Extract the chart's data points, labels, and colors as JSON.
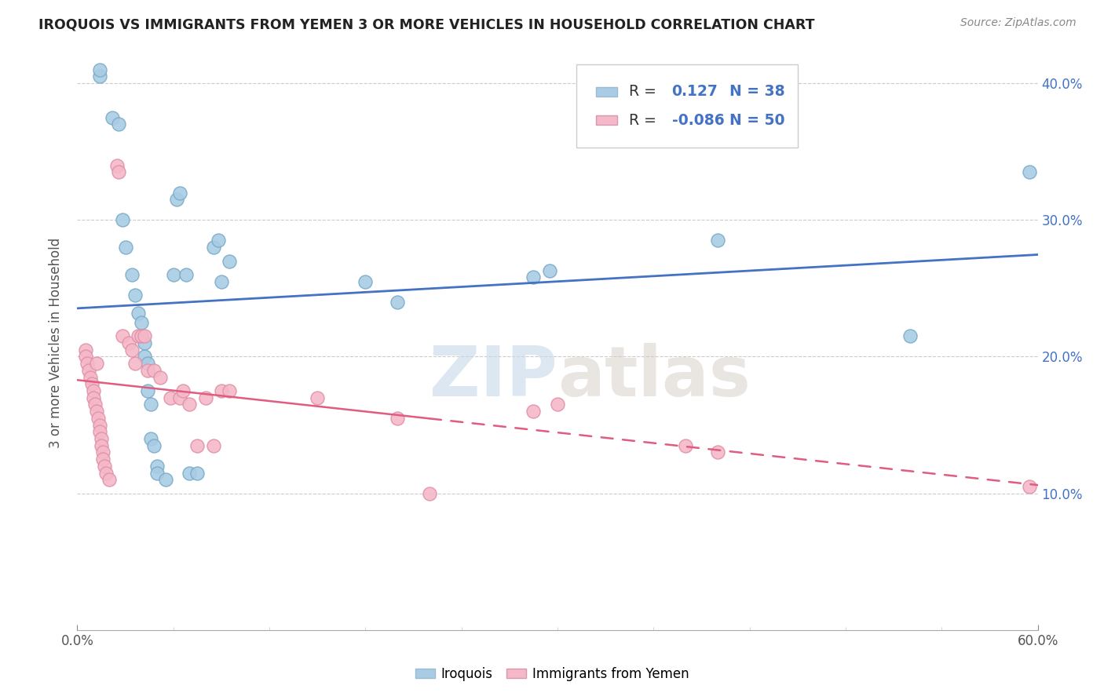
{
  "title": "IROQUOIS VS IMMIGRANTS FROM YEMEN 3 OR MORE VEHICLES IN HOUSEHOLD CORRELATION CHART",
  "source": "Source: ZipAtlas.com",
  "ylabel": "3 or more Vehicles in Household",
  "xmin": 0.0,
  "xmax": 0.6,
  "ymin": 0.0,
  "ymax": 0.42,
  "xticks_major": [
    0.0,
    0.6
  ],
  "xticklabels_major": [
    "0.0%",
    "60.0%"
  ],
  "xticks_minor": [
    0.06,
    0.12,
    0.18,
    0.24,
    0.3,
    0.36,
    0.42,
    0.48,
    0.54
  ],
  "yticks": [
    0.1,
    0.2,
    0.3,
    0.4
  ],
  "yticklabels": [
    "10.0%",
    "20.0%",
    "30.0%",
    "40.0%"
  ],
  "legend_label1": "Iroquois",
  "legend_label2": "Immigrants from Yemen",
  "R1": 0.127,
  "N1": 38,
  "R2": -0.086,
  "N2": 50,
  "color_blue": "#a8cce4",
  "color_pink": "#f4b8c8",
  "color_blue_line": "#4472c4",
  "color_pink_line": "#e05c80",
  "watermark": "ZIPatlas",
  "blue_points": [
    [
      0.014,
      0.405
    ],
    [
      0.022,
      0.375
    ],
    [
      0.026,
      0.37
    ],
    [
      0.014,
      0.41
    ],
    [
      0.028,
      0.3
    ],
    [
      0.03,
      0.28
    ],
    [
      0.034,
      0.26
    ],
    [
      0.036,
      0.245
    ],
    [
      0.038,
      0.232
    ],
    [
      0.04,
      0.225
    ],
    [
      0.04,
      0.215
    ],
    [
      0.042,
      0.21
    ],
    [
      0.042,
      0.2
    ],
    [
      0.044,
      0.195
    ],
    [
      0.044,
      0.175
    ],
    [
      0.046,
      0.165
    ],
    [
      0.046,
      0.14
    ],
    [
      0.048,
      0.135
    ],
    [
      0.05,
      0.12
    ],
    [
      0.05,
      0.115
    ],
    [
      0.055,
      0.11
    ],
    [
      0.06,
      0.26
    ],
    [
      0.062,
      0.315
    ],
    [
      0.064,
      0.32
    ],
    [
      0.068,
      0.26
    ],
    [
      0.07,
      0.115
    ],
    [
      0.075,
      0.115
    ],
    [
      0.085,
      0.28
    ],
    [
      0.088,
      0.285
    ],
    [
      0.09,
      0.255
    ],
    [
      0.095,
      0.27
    ],
    [
      0.18,
      0.255
    ],
    [
      0.2,
      0.24
    ],
    [
      0.285,
      0.258
    ],
    [
      0.295,
      0.263
    ],
    [
      0.4,
      0.285
    ],
    [
      0.52,
      0.215
    ],
    [
      0.595,
      0.335
    ]
  ],
  "pink_points": [
    [
      0.005,
      0.205
    ],
    [
      0.005,
      0.2
    ],
    [
      0.006,
      0.195
    ],
    [
      0.007,
      0.19
    ],
    [
      0.008,
      0.185
    ],
    [
      0.009,
      0.18
    ],
    [
      0.01,
      0.175
    ],
    [
      0.01,
      0.17
    ],
    [
      0.011,
      0.165
    ],
    [
      0.012,
      0.195
    ],
    [
      0.012,
      0.16
    ],
    [
      0.013,
      0.155
    ],
    [
      0.014,
      0.15
    ],
    [
      0.014,
      0.145
    ],
    [
      0.015,
      0.14
    ],
    [
      0.015,
      0.135
    ],
    [
      0.016,
      0.13
    ],
    [
      0.016,
      0.125
    ],
    [
      0.017,
      0.12
    ],
    [
      0.018,
      0.115
    ],
    [
      0.02,
      0.11
    ],
    [
      0.025,
      0.34
    ],
    [
      0.026,
      0.335
    ],
    [
      0.028,
      0.215
    ],
    [
      0.032,
      0.21
    ],
    [
      0.034,
      0.205
    ],
    [
      0.036,
      0.195
    ],
    [
      0.038,
      0.215
    ],
    [
      0.04,
      0.215
    ],
    [
      0.042,
      0.215
    ],
    [
      0.044,
      0.19
    ],
    [
      0.048,
      0.19
    ],
    [
      0.052,
      0.185
    ],
    [
      0.058,
      0.17
    ],
    [
      0.064,
      0.17
    ],
    [
      0.066,
      0.175
    ],
    [
      0.07,
      0.165
    ],
    [
      0.075,
      0.135
    ],
    [
      0.08,
      0.17
    ],
    [
      0.085,
      0.135
    ],
    [
      0.09,
      0.175
    ],
    [
      0.095,
      0.175
    ],
    [
      0.15,
      0.17
    ],
    [
      0.2,
      0.155
    ],
    [
      0.22,
      0.1
    ],
    [
      0.285,
      0.16
    ],
    [
      0.3,
      0.165
    ],
    [
      0.38,
      0.135
    ],
    [
      0.4,
      0.13
    ],
    [
      0.595,
      0.105
    ]
  ]
}
